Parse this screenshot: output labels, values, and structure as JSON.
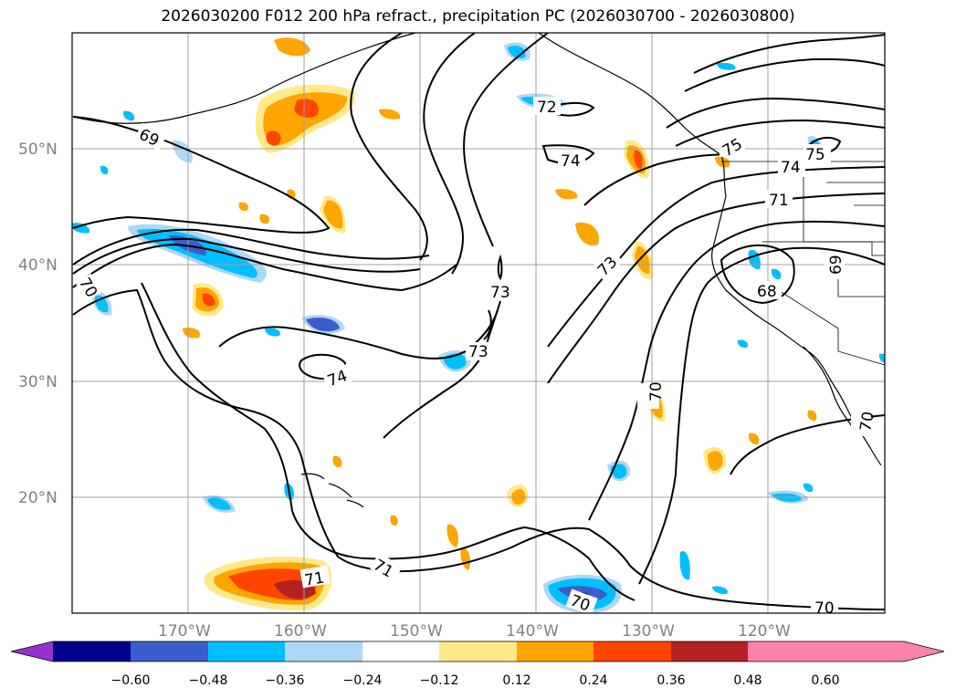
{
  "title": "2026030200 F012 200 hPa refract., precipitation PC (2026030700 - 2026030800)",
  "lat_labels": [
    "50°N",
    "40°N",
    "30°N",
    "20°N"
  ],
  "lon_labels": [
    "170°W",
    "160°W",
    "150°W",
    "140°W",
    "130°W",
    "120°W"
  ],
  "colorbar": {
    "colors": [
      "#9932cc",
      "#00008b",
      "#3a5fcd",
      "#00bfff",
      "#add8f6",
      "#ffffff",
      "#ffe98a",
      "#ffa500",
      "#ff4500",
      "#b22222",
      "#ff82ab"
    ],
    "tick_labels": [
      "−0.60",
      "−0.48",
      "−0.36",
      "−0.24",
      "−0.12",
      "0.12",
      "0.24",
      "0.36",
      "0.48",
      "0.60"
    ],
    "extend": "both"
  },
  "contour_labels": [
    "69",
    "70",
    "72",
    "74",
    "75",
    "74",
    "71",
    "73",
    "73",
    "73",
    "74",
    "70",
    "68",
    "69",
    "75",
    "70",
    "71",
    "71",
    "70",
    "70"
  ],
  "colors": {
    "grid": "#a0a0a0",
    "contour": "#000000",
    "tick_label": "#808080"
  }
}
